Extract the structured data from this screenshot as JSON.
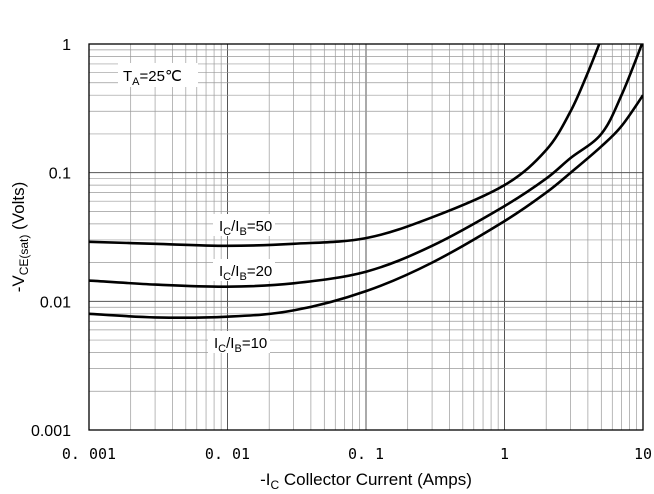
{
  "chart_data": {
    "type": "line",
    "title": "",
    "x_scale": "log",
    "y_scale": "log",
    "xlim": [
      0.001,
      10
    ],
    "ylim": [
      0.001,
      1
    ],
    "grid": true,
    "x_tick_labels": [
      "0. 001",
      "0. 01",
      "0. 1",
      "1",
      "10"
    ],
    "y_tick_labels": [
      "1",
      "0.1",
      "0.01",
      "0.001"
    ],
    "xlabel": {
      "prefix": "-I",
      "sub": "C",
      "suffix": " Collector Current (Amps)"
    },
    "ylabel": {
      "prefix": "-V",
      "sub": "CE(sat)",
      "suffix": " (Volts)"
    },
    "condition": {
      "prefix": "T",
      "sub": "A",
      "suffix": "=25℃"
    },
    "series": [
      {
        "name": "IC/IB=50",
        "label": {
          "p1": "I",
          "s1": "C",
          "p2": "/I",
          "s2": "B",
          "p3": "=50"
        },
        "x": [
          0.001,
          0.003,
          0.01,
          0.03,
          0.1,
          0.3,
          1,
          2,
          3,
          4,
          5
        ],
        "y": [
          0.029,
          0.028,
          0.027,
          0.028,
          0.031,
          0.045,
          0.08,
          0.15,
          0.3,
          0.6,
          1.1
        ]
      },
      {
        "name": "IC/IB=20",
        "label": {
          "p1": "I",
          "s1": "C",
          "p2": "/I",
          "s2": "B",
          "p3": "=20"
        },
        "x": [
          0.001,
          0.003,
          0.01,
          0.03,
          0.1,
          0.3,
          1,
          2,
          3,
          5,
          7,
          10
        ],
        "y": [
          0.0145,
          0.0135,
          0.013,
          0.0138,
          0.017,
          0.027,
          0.055,
          0.09,
          0.13,
          0.2,
          0.4,
          1.05
        ]
      },
      {
        "name": "IC/IB=10",
        "label": {
          "p1": "I",
          "s1": "C",
          "p2": "/I",
          "s2": "B",
          "p3": "=10"
        },
        "x": [
          0.001,
          0.003,
          0.01,
          0.03,
          0.1,
          0.3,
          1,
          2,
          3,
          5,
          7,
          10
        ],
        "y": [
          0.008,
          0.0075,
          0.0076,
          0.0085,
          0.012,
          0.02,
          0.042,
          0.07,
          0.1,
          0.16,
          0.23,
          0.4
        ]
      }
    ]
  }
}
